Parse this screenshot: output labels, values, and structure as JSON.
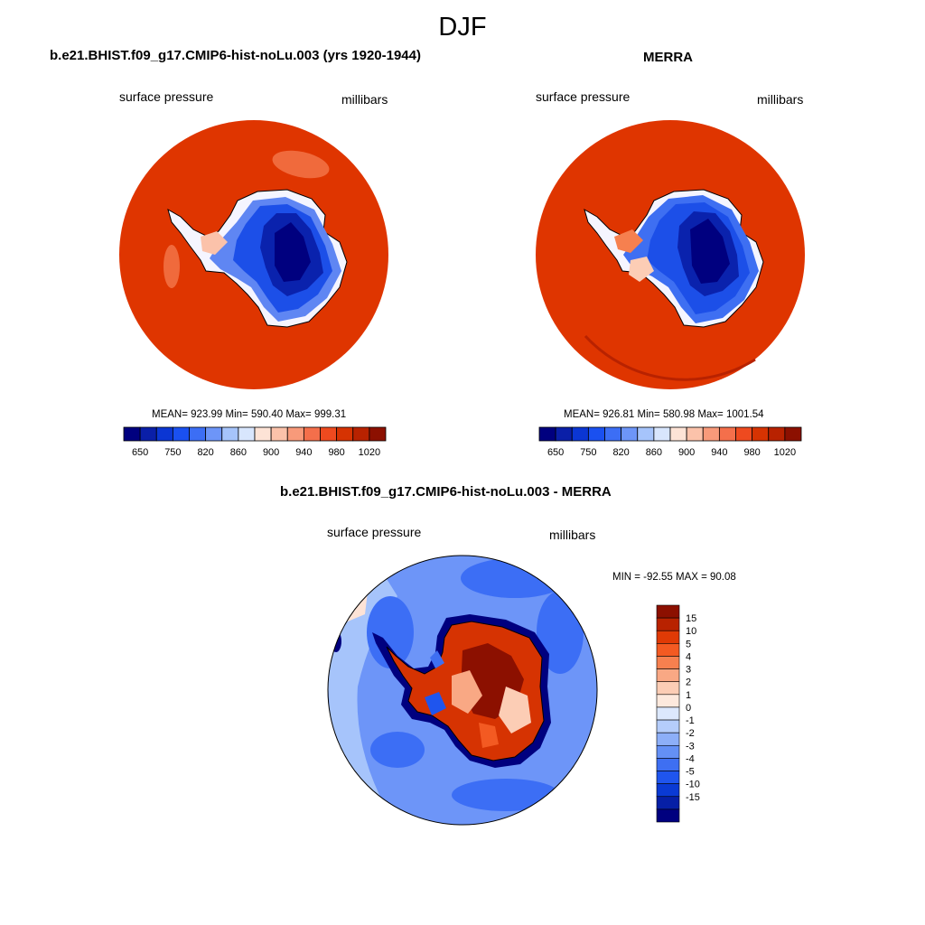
{
  "figure": {
    "title": "DJF"
  },
  "panels": [
    {
      "title": "b.e21.BHIST.f09_g17.CMIP6-hist-noLu.003 (yrs 1920-1944)",
      "left_label": "surface pressure",
      "right_label": "millibars",
      "stats": "MEAN= 923.99  Min= 590.40  Max= 999.31"
    },
    {
      "title": "MERRA",
      "left_label": "surface pressure",
      "right_label": "millibars",
      "stats": "MEAN= 926.81  Min= 580.98  Max= 1001.54"
    },
    {
      "title": "b.e21.BHIST.f09_g17.CMIP6-hist-noLu.003 - MERRA",
      "left_label": "surface pressure",
      "right_label": "millibars",
      "stats": "MIN = -92.55 MAX =  90.08"
    }
  ],
  "colorbar_horizontal": {
    "colors": [
      "#00007f",
      "#0a1fa8",
      "#0b36d3",
      "#1a50f0",
      "#3c6ef5",
      "#6d95f8",
      "#a6c4fb",
      "#d8e6fd",
      "#fde3d6",
      "#fbc2aa",
      "#f89a7a",
      "#f46f4b",
      "#ee4a1f",
      "#d63302",
      "#b82200",
      "#8c1000"
    ],
    "tick_labels": [
      "650",
      "750",
      "820",
      "860",
      "900",
      "940",
      "980",
      "1020"
    ]
  },
  "colorbar_vertical": {
    "colors_top_to_bottom": [
      "#8c1000",
      "#b82200",
      "#e03a05",
      "#f35a22",
      "#f6804f",
      "#f9a884",
      "#fccdb5",
      "#fde9dd",
      "#dce8fd",
      "#b5cdfb",
      "#8dafF8",
      "#6490f5",
      "#3e6ff2",
      "#1f55ee",
      "#0a3ad4",
      "#061fa6",
      "#00007f"
    ],
    "tick_labels": [
      "15",
      "10",
      "5",
      "4",
      "3",
      "2",
      "1",
      "0",
      "-1",
      "-2",
      "-3",
      "-4",
      "-5",
      "-10",
      "-15"
    ]
  }
}
